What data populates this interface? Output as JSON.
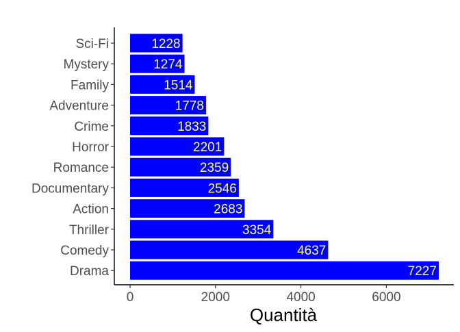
{
  "chart_data": {
    "type": "bar",
    "orientation": "horizontal",
    "categories": [
      "Sci-Fi",
      "Mystery",
      "Family",
      "Adventure",
      "Crime",
      "Horror",
      "Romance",
      "Documentary",
      "Action",
      "Thriller",
      "Comedy",
      "Drama"
    ],
    "values": [
      1228,
      1274,
      1514,
      1778,
      1833,
      2201,
      2359,
      2546,
      2683,
      3354,
      4637,
      7227
    ],
    "xlabel": "Quantità",
    "ylabel": "",
    "xlim": [
      0,
      7600
    ],
    "xticks": [
      0,
      2000,
      4000,
      6000
    ],
    "xtick_labels": [
      "0",
      "2000",
      "4000",
      "6000"
    ],
    "grid": false,
    "legend": "none",
    "colors": {
      "bar": "#0000ff",
      "data_label": "#ffff66",
      "tick_label": "#4d4d4d",
      "axis_line": "#000000",
      "axis_title": "#000000"
    }
  }
}
